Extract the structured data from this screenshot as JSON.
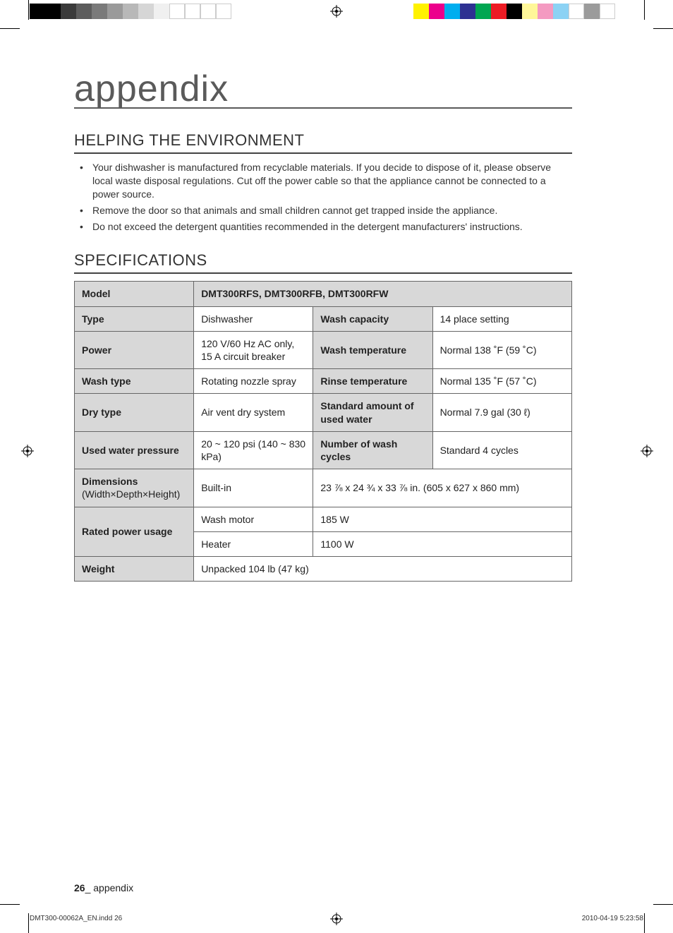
{
  "printbars": {
    "left": [
      "#000000",
      "#000000",
      "#3a3a3a",
      "#5c5c5c",
      "#7a7a7a",
      "#9a9a9a",
      "#b8b8b8",
      "#d6d6d6",
      "#f0f0f0",
      "#ffffff",
      "#ffffff",
      "#ffffff",
      "#ffffff"
    ],
    "right": [
      "#fff200",
      "#ec008c",
      "#00aeef",
      "#2e3192",
      "#00a651",
      "#ed1c24",
      "#000000",
      "#fff799",
      "#f49ac1",
      "#8cd2f4",
      "#ffffff",
      "#9b9b9b",
      "#ffffff"
    ]
  },
  "title": "appendix",
  "sections": {
    "env_heading": "HELPING THE ENVIRONMENT",
    "env_items": [
      "Your dishwasher is manufactured from recyclable materials. If you decide to dispose of it, please observe local waste disposal regulations. Cut off the power cable so that the appliance cannot be connected to a power source.",
      "Remove the door so that animals and small children cannot get trapped inside the appliance.",
      "Do not exceed the detergent quantities recommended in the detergent manufacturers' instructions."
    ],
    "spec_heading": "SPECIFICATIONS"
  },
  "spec": {
    "model_label": "Model",
    "model_value": "DMT300RFS, DMT300RFB, DMT300RFW",
    "rows": {
      "type_l": "Type",
      "type_v": "Dishwasher",
      "washcap_l": "Wash capacity",
      "washcap_v": "14 place setting",
      "power_l": "Power",
      "power_v": "120 V/60 Hz AC only, 15 A circuit breaker",
      "washtemp_l": "Wash temperature",
      "washtemp_v": "Normal 138 ˚F (59 ˚C)",
      "washtype_l": "Wash type",
      "washtype_v": "Rotating nozzle spray",
      "rinsetemp_l": "Rinse temperature",
      "rinsetemp_v": "Normal 135 ˚F (57 ˚C)",
      "drytype_l": "Dry type",
      "drytype_v": "Air vent dry system",
      "stdwater_l": "Standard amount of used water",
      "stdwater_v": "Normal 7.9 gal (30 ℓ)",
      "usedpress_l": "Used water pressure",
      "usedpress_v": "20 ~ 120 psi (140 ~ 830 kPa)",
      "numcycles_l": "Number of wash cycles",
      "numcycles_v": "Standard 4 cycles",
      "dim_l": "Dimensions",
      "dim_sub": "(Width×Depth×Height)",
      "dim_v1": "Built-in",
      "dim_v2": "23 ⅞ x 24 ¾ x 33 ⅞ in. (605 x 627 x 860 mm)",
      "rated_l": "Rated power usage",
      "rated_r1a": "Wash motor",
      "rated_r1b": "185 W",
      "rated_r2a": "Heater",
      "rated_r2b": "1100 W",
      "weight_l": "Weight",
      "weight_v": "Unpacked 104 lb (47 kg)"
    },
    "col_widths": [
      "24%",
      "24%",
      "24%",
      "28%"
    ],
    "header_bg": "#d8d8d8",
    "border_color": "#666666",
    "font_size_pt": 10.5
  },
  "footer": {
    "page_num": "26",
    "page_label": "_ appendix",
    "meta_left": "DMT300-00062A_EN.indd   26",
    "meta_right": "2010-04-19     5:23:58"
  }
}
